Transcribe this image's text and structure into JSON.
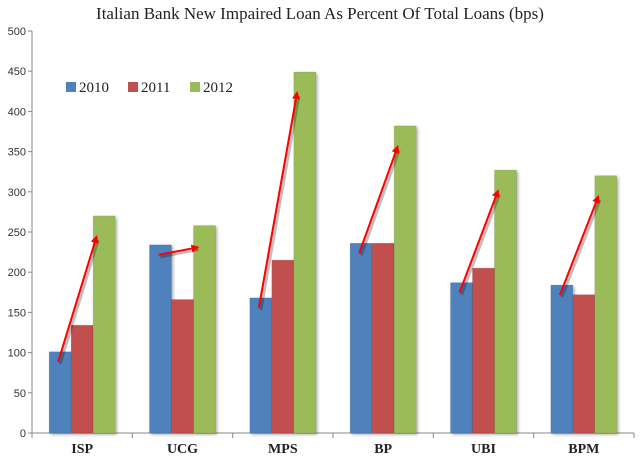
{
  "chart_data": {
    "type": "bar",
    "title": "Italian Bank New Impaired Loan As Percent Of Total Loans (bps)",
    "categories": [
      "ISP",
      "UCG",
      "MPS",
      "BP",
      "UBI",
      "BPM"
    ],
    "series": [
      {
        "name": "2010",
        "values": [
          101,
          234,
          168,
          236,
          187,
          184
        ],
        "color": "#4F81BD"
      },
      {
        "name": "2011",
        "values": [
          134,
          166,
          215,
          236,
          205,
          172
        ],
        "color": "#C0504D"
      },
      {
        "name": "2012",
        "values": [
          270,
          258,
          449,
          382,
          327,
          320
        ],
        "color": "#9BBB59"
      }
    ],
    "ylim": [
      0,
      500
    ],
    "yticks": [
      0,
      50,
      100,
      150,
      200,
      250,
      300,
      350,
      400,
      450,
      500
    ],
    "grid": false,
    "legend_position": "top-left",
    "annotations": "red arrows from 2010 bar to 2012 bar in each group",
    "arrow_color": "#FF0000"
  }
}
